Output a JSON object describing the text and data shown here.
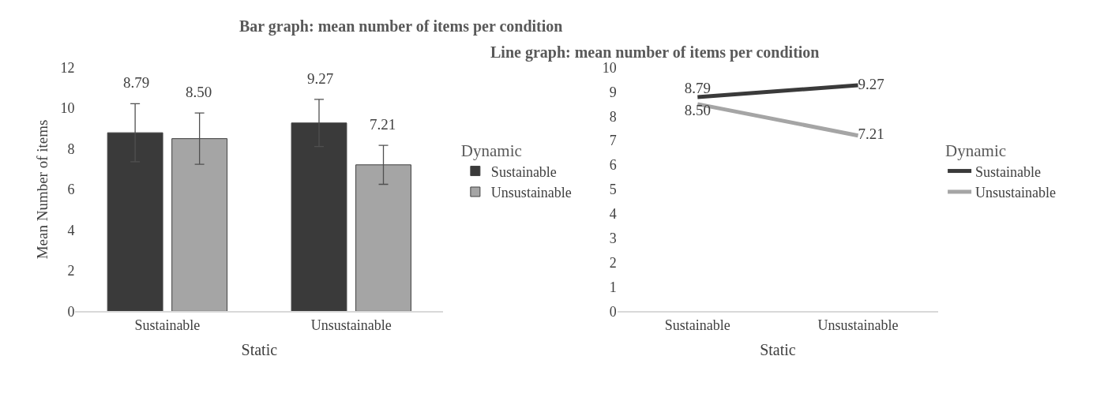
{
  "chart_data": [
    {
      "type": "bar",
      "title": "Bar graph: mean number of items per condition",
      "xlabel": "Static",
      "ylabel": "Mean Number of items",
      "legend_title": "Dynamic",
      "categories": [
        "Sustainable",
        "Unsustainable"
      ],
      "ylim": [
        0,
        12
      ],
      "yticks": [
        0,
        2,
        4,
        6,
        8,
        10,
        12
      ],
      "grid": false,
      "legend": "right",
      "series": [
        {
          "name": "Sustainable",
          "color": "#3a3a3a",
          "values": [
            8.79,
            9.27
          ],
          "value_labels": [
            "8.79",
            "9.27"
          ],
          "errors": [
            1.43,
            1.16
          ]
        },
        {
          "name": "Unsustainable",
          "color": "#a5a5a5",
          "values": [
            8.5,
            7.21
          ],
          "value_labels": [
            "8.50",
            "7.21"
          ],
          "errors": [
            1.26,
            0.96
          ]
        }
      ]
    },
    {
      "type": "line",
      "title": "Line graph: mean number of items per condition",
      "xlabel": "Static",
      "legend_title": "Dynamic",
      "categories": [
        "Sustainable",
        "Unsustainable"
      ],
      "ylim": [
        0,
        10
      ],
      "yticks": [
        0,
        1,
        2,
        3,
        4,
        5,
        6,
        7,
        8,
        9,
        10
      ],
      "grid": false,
      "legend": "right",
      "marker": "none",
      "line_style": "solid",
      "series": [
        {
          "name": "Sustainable",
          "color": "#3a3a3a",
          "values": [
            8.79,
            9.27
          ],
          "value_labels": [
            "8.79",
            "9.27"
          ]
        },
        {
          "name": "Unsustainable",
          "color": "#a5a5a5",
          "values": [
            8.5,
            7.21
          ],
          "value_labels": [
            "8.50",
            "7.21"
          ]
        }
      ]
    }
  ]
}
